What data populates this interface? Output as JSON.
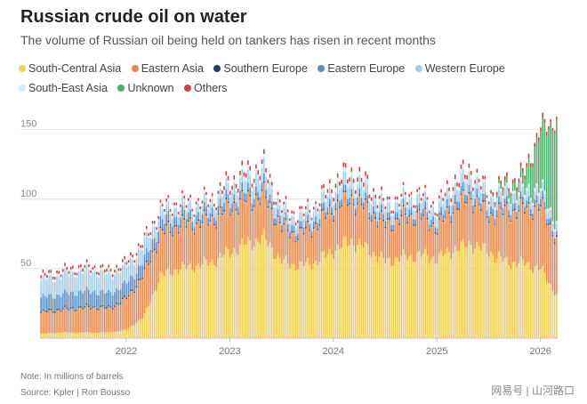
{
  "header": {
    "title": "Russian crude oil on water",
    "subtitle": "The volume of Russian oil being held on tankers has risen in recent months"
  },
  "footer": {
    "note": "Note: In millions of barrels",
    "source": "Source: Kpler | Ron Bousso",
    "watermark": "网易号 | 山河路口"
  },
  "colors": {
    "south_central_asia": "#f2cf5b",
    "eastern_asia": "#e8884f",
    "southern_europe": "#1f3f6e",
    "eastern_europe": "#5b8cc4",
    "western_europe": "#a9cce8",
    "south_east_asia": "#d4ecf7",
    "unknown": "#4fb06a",
    "others": "#c9453f"
  },
  "chart_data": {
    "type": "bar",
    "stacked": true,
    "title": "Russian crude oil on water",
    "xlabel": "",
    "ylabel": "",
    "ylim": [
      0,
      160
    ],
    "yticks": [
      50,
      100,
      150
    ],
    "xticks": [
      "2022",
      "2023",
      "2024",
      "2025",
      "2026"
    ],
    "x_range": [
      "2021-03",
      "2026-03"
    ],
    "grid": true,
    "legend_position": "top",
    "legend": [
      "South-Central Asia",
      "Eastern Asia",
      "Southern Europe",
      "Eastern Europe",
      "Western Europe",
      "South-East Asia",
      "Unknown",
      "Others"
    ],
    "x": [
      "2021-03",
      "2021-05",
      "2021-07",
      "2021-09",
      "2021-11",
      "2022-01",
      "2022-03",
      "2022-05",
      "2022-07",
      "2022-09",
      "2022-11",
      "2023-01",
      "2023-03",
      "2023-05",
      "2023-07",
      "2023-09",
      "2023-11",
      "2024-01",
      "2024-03",
      "2024-05",
      "2024-07",
      "2024-09",
      "2024-11",
      "2025-01",
      "2025-03",
      "2025-05",
      "2025-07",
      "2025-09",
      "2025-11",
      "2026-01",
      "2026-03"
    ],
    "series": [
      {
        "name": "South-Central Asia",
        "values": [
          3,
          4,
          4,
          4,
          4,
          6,
          15,
          45,
          50,
          52,
          55,
          62,
          68,
          72,
          55,
          52,
          55,
          63,
          70,
          64,
          55,
          58,
          60,
          57,
          64,
          68,
          62,
          55,
          54,
          50,
          30
        ]
      },
      {
        "name": "Eastern Asia",
        "values": [
          15,
          16,
          17,
          18,
          17,
          22,
          30,
          30,
          31,
          30,
          30,
          32,
          31,
          30,
          24,
          22,
          26,
          30,
          30,
          28,
          26,
          28,
          28,
          22,
          30,
          33,
          26,
          36,
          38,
          45,
          40
        ]
      },
      {
        "name": "Southern Europe",
        "values": [
          1,
          1,
          1,
          1,
          1,
          1,
          1,
          1,
          1,
          1,
          1,
          1,
          1,
          1,
          1,
          1,
          1,
          1,
          1,
          1,
          1,
          1,
          1,
          1,
          1,
          1,
          1,
          1,
          1,
          1,
          1
        ]
      },
      {
        "name": "Eastern Europe",
        "values": [
          10,
          10,
          11,
          11,
          10,
          10,
          9,
          7,
          6,
          5,
          5,
          5,
          5,
          5,
          4,
          4,
          4,
          4,
          4,
          4,
          4,
          4,
          4,
          4,
          5,
          5,
          4,
          4,
          4,
          4,
          3
        ]
      },
      {
        "name": "Western Europe",
        "values": [
          12,
          13,
          14,
          14,
          13,
          12,
          11,
          7,
          6,
          6,
          6,
          8,
          9,
          10,
          7,
          6,
          7,
          8,
          9,
          8,
          7,
          7,
          7,
          7,
          8,
          9,
          7,
          7,
          7,
          6,
          5
        ]
      },
      {
        "name": "South-East Asia",
        "values": [
          2,
          2,
          2,
          2,
          2,
          2,
          2,
          2,
          2,
          2,
          2,
          2,
          3,
          3,
          2,
          2,
          2,
          3,
          3,
          3,
          2,
          2,
          2,
          2,
          3,
          3,
          2,
          2,
          2,
          2,
          2
        ]
      },
      {
        "name": "Unknown",
        "values": [
          0,
          0,
          0,
          0,
          0,
          0,
          0,
          0,
          0,
          0,
          0,
          0,
          0,
          0,
          0,
          0,
          0,
          0,
          0,
          0,
          0,
          0,
          0,
          0,
          0,
          0,
          0,
          4,
          8,
          40,
          75
        ]
      },
      {
        "name": "Others",
        "values": [
          2,
          2,
          2,
          2,
          2,
          2,
          2,
          2,
          2,
          2,
          2,
          3,
          3,
          3,
          2,
          2,
          2,
          3,
          3,
          3,
          2,
          2,
          2,
          2,
          3,
          3,
          2,
          3,
          3,
          3,
          2
        ]
      }
    ]
  }
}
